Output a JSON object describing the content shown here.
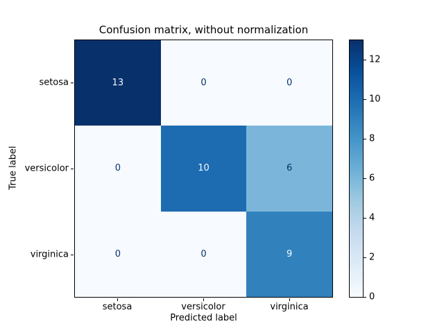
{
  "chart_data": {
    "type": "heatmap",
    "title": "Confusion matrix, without normalization",
    "xlabel": "Predicted label",
    "ylabel": "True label",
    "categories": [
      "setosa",
      "versicolor",
      "virginica"
    ],
    "matrix": [
      [
        13,
        0,
        0
      ],
      [
        0,
        10,
        6
      ],
      [
        0,
        0,
        9
      ]
    ],
    "vmin": 0,
    "vmax": 13,
    "colormap": "Blues",
    "colormap_stops": [
      "#f7fbff",
      "#deebf7",
      "#c6dbef",
      "#9ecae1",
      "#6baed6",
      "#4292c6",
      "#2171b5",
      "#08519c",
      "#08306b"
    ],
    "cell_colors": [
      [
        "#08306b",
        "#f7fbff",
        "#f7fbff"
      ],
      [
        "#f7fbff",
        "#1d6cb1",
        "#7bb6da"
      ],
      [
        "#f7fbff",
        "#f7fbff",
        "#3181bd"
      ]
    ],
    "cell_text_colors": [
      [
        "#f7fbff",
        "#08306b",
        "#08306b"
      ],
      [
        "#08306b",
        "#f7fbff",
        "#08306b"
      ],
      [
        "#08306b",
        "#08306b",
        "#f7fbff"
      ]
    ],
    "colorbar_ticks": [
      0,
      2,
      4,
      6,
      8,
      10,
      12
    ],
    "legend_position": "right-colorbar",
    "grid": false
  }
}
